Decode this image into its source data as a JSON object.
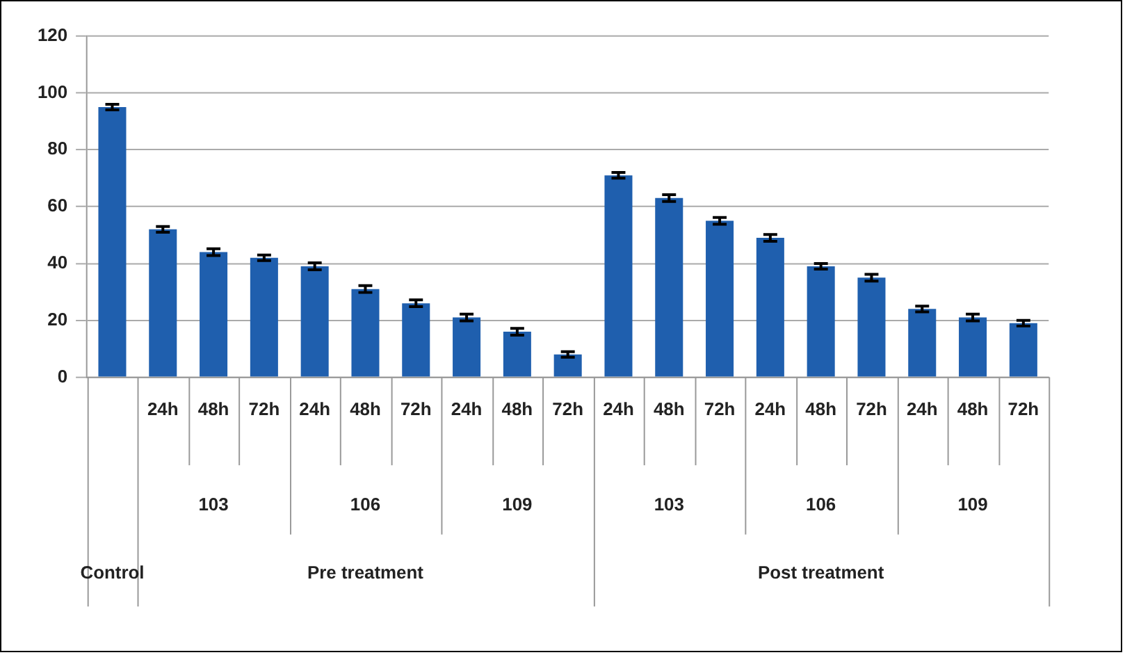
{
  "chart_data": {
    "type": "bar",
    "categories": [
      null,
      "24h",
      "48h",
      "72h",
      "24h",
      "48h",
      "72h",
      "24h",
      "48h",
      "72h",
      "24h",
      "48h",
      "72h",
      "24h",
      "48h",
      "72h",
      "24h",
      "48h",
      "72h"
    ],
    "values": [
      95,
      52,
      44,
      42,
      39,
      31,
      26,
      21,
      16,
      8,
      71,
      63,
      55,
      49,
      39,
      35,
      24,
      21,
      19
    ],
    "errors": [
      1,
      1,
      1.2,
      1,
      1.2,
      1.2,
      1.2,
      1.2,
      1.2,
      1,
      1,
      1.2,
      1.2,
      1.2,
      1,
      1.2,
      1,
      1.2,
      1
    ],
    "color": "#1f5fae",
    "ylim": [
      0,
      120
    ],
    "yticks": [
      0,
      20,
      40,
      60,
      80,
      100,
      120
    ],
    "grid": "y",
    "legend": false,
    "annotations": [
      "103",
      "106",
      "109",
      "103",
      "106",
      "109",
      "Control",
      "Pre treatment",
      "Post treatment"
    ]
  }
}
